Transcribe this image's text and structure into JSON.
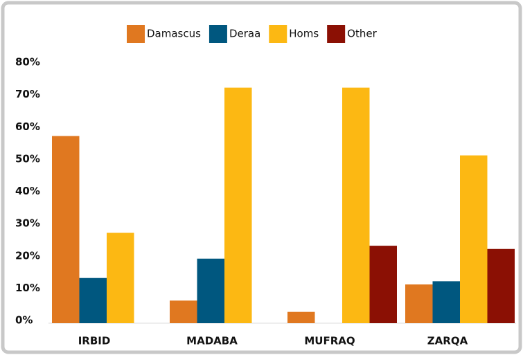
{
  "chart_data": {
    "type": "bar",
    "categories": [
      "IRBID",
      "MADABA",
      "MUFRAQ",
      "ZARQA"
    ],
    "series": [
      {
        "name": "Damascus",
        "color": "#e07820",
        "values": [
          58,
          7,
          3.5,
          12
        ]
      },
      {
        "name": "Deraa",
        "color": "#00577f",
        "values": [
          14,
          20,
          0,
          13
        ]
      },
      {
        "name": "Homs",
        "color": "#fcb813",
        "values": [
          28,
          73,
          73,
          52
        ]
      },
      {
        "name": "Other",
        "color": "#8b1004",
        "values": [
          0,
          0,
          24,
          23
        ]
      }
    ],
    "ylim": [
      0,
      80
    ],
    "yticks": [
      {
        "value": 0,
        "label": "0%"
      },
      {
        "value": 10,
        "label": "10%"
      },
      {
        "value": 20,
        "label": "20%"
      },
      {
        "value": 30,
        "label": "30%"
      },
      {
        "value": 40,
        "label": "40%"
      },
      {
        "value": 50,
        "label": "50%"
      },
      {
        "value": 60,
        "label": "60%"
      },
      {
        "value": 70,
        "label": "70%"
      },
      {
        "value": 80,
        "label": "80%"
      }
    ],
    "grid": false,
    "legend": "top"
  }
}
